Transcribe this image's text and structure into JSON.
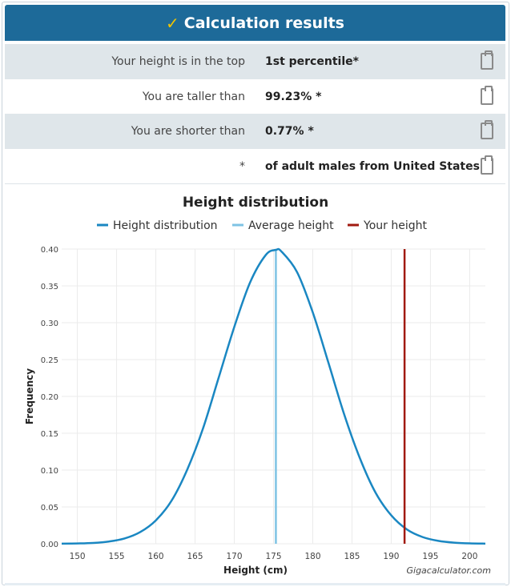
{
  "header": {
    "title": "Calculation results",
    "icon": "check-icon"
  },
  "results": [
    {
      "label": "Your height is in the top",
      "value": "1st percentile*"
    },
    {
      "label": "You are taller than",
      "value": "99.23% *"
    },
    {
      "label": "You are shorter than",
      "value": "0.77% *"
    },
    {
      "label": "*",
      "value": "of adult males from United States"
    }
  ],
  "chart_data": {
    "type": "line",
    "title": "Height distribution",
    "xlabel": "Height (cm)",
    "ylabel": "Frequency",
    "xlim": [
      148,
      202
    ],
    "ylim": [
      0,
      0.4
    ],
    "xticks": [
      "150",
      "155",
      "160",
      "165",
      "170",
      "175",
      "180",
      "185",
      "190",
      "195",
      "200"
    ],
    "yticks": [
      "0.00",
      "0.05",
      "0.10",
      "0.15",
      "0.20",
      "0.25",
      "0.30",
      "0.35",
      "0.40"
    ],
    "grid": true,
    "legend_position": "top",
    "watermark": "Gigacalculator.com",
    "series": [
      {
        "name": "Height distribution",
        "color": "#1a87c2",
        "x": [
          148,
          150,
          152,
          154,
          156,
          158,
          160,
          162,
          164,
          166,
          168,
          170,
          172,
          174,
          175.3,
          176,
          178,
          180,
          182,
          184,
          186,
          188,
          190,
          192,
          194,
          196,
          198,
          200,
          202
        ],
        "y": [
          0.0001,
          0.0004,
          0.0011,
          0.003,
          0.0071,
          0.0158,
          0.0317,
          0.0584,
          0.1006,
          0.1561,
          0.2251,
          0.2943,
          0.3544,
          0.3918,
          0.3989,
          0.3968,
          0.3687,
          0.3141,
          0.2456,
          0.1758,
          0.1163,
          0.0694,
          0.0386,
          0.0194,
          0.0091,
          0.0039,
          0.0015,
          0.0005,
          0.0002
        ]
      },
      {
        "name": "Average height",
        "color": "#7ec3e4",
        "x": 175.3
      },
      {
        "name": "Your height",
        "color": "#a11a10",
        "x": 191.7
      }
    ]
  }
}
